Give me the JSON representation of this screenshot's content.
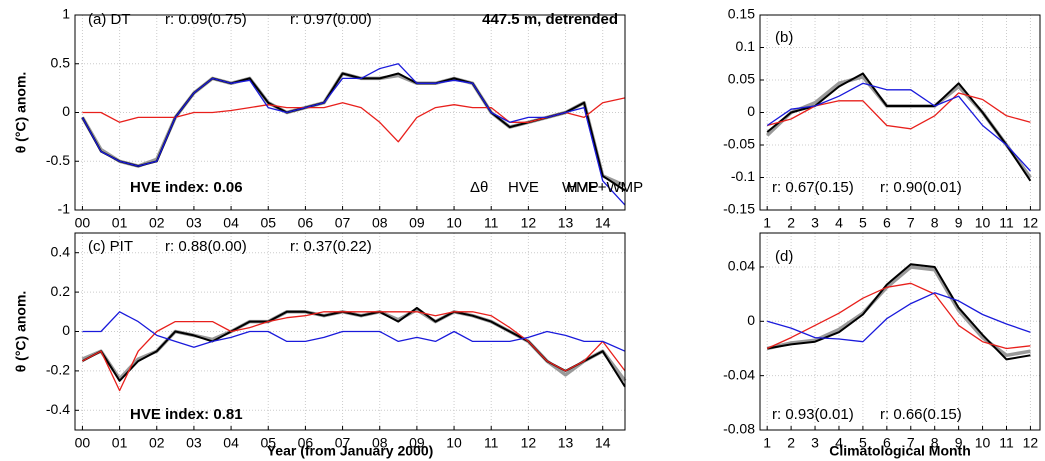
{
  "chart_data": [
    {
      "type": "line",
      "legend": true,
      "grid": true,
      "y_label": "θ (°C) anom.",
      "annotations": [
        {
          "text": "(a) DT",
          "color": "#000000"
        },
        {
          "text": "r: 0.09(0.75)",
          "color": "#e8201c"
        },
        {
          "text": "r: 0.97(0.00)",
          "color": "#1a1adb"
        },
        {
          "text": "447.5 m, detrended",
          "color": "#000000"
        },
        {
          "text": "HVE index: 0.06",
          "color": "#000000"
        }
      ],
      "x": [
        0,
        0.5,
        1,
        1.5,
        2,
        2.5,
        3,
        3.5,
        4,
        4.5,
        5,
        5.5,
        6,
        6.5,
        7,
        7.5,
        8,
        8.5,
        9,
        9.5,
        10,
        10.5,
        11,
        11.5,
        12,
        12.5,
        13,
        13.5,
        14,
        14.6
      ],
      "xlim": [
        -0.2,
        14.6
      ],
      "xticks": [
        {
          "value": 0,
          "label": "00"
        },
        {
          "value": 1,
          "label": "01"
        },
        {
          "value": 2,
          "label": "02"
        },
        {
          "value": 3,
          "label": "03"
        },
        {
          "value": 4,
          "label": "04"
        },
        {
          "value": 5,
          "label": "05"
        },
        {
          "value": 6,
          "label": "06"
        },
        {
          "value": 7,
          "label": "07"
        },
        {
          "value": 8,
          "label": "08"
        },
        {
          "value": 9,
          "label": "09"
        },
        10,
        11,
        12,
        13,
        14
      ],
      "ylim": [
        -1,
        1
      ],
      "yticks": [
        -1,
        -0.5,
        0,
        0.5,
        1
      ],
      "series": [
        {
          "name": "Δθ",
          "color": "#000000",
          "values": [
            -0.05,
            -0.4,
            -0.5,
            -0.55,
            -0.5,
            -0.05,
            0.2,
            0.35,
            0.3,
            0.35,
            0.1,
            0.0,
            0.05,
            0.1,
            0.4,
            0.35,
            0.35,
            0.4,
            0.3,
            0.3,
            0.35,
            0.3,
            0.0,
            -0.15,
            -0.1,
            -0.05,
            0.0,
            0.1,
            -0.65,
            -0.8
          ]
        },
        {
          "name": "HVE",
          "color": "#e8201c",
          "values": [
            0,
            0,
            -0.1,
            -0.05,
            -0.05,
            -0.05,
            0,
            0,
            0.02,
            0.05,
            0.08,
            0.05,
            0.05,
            0.05,
            0.1,
            0.05,
            -0.1,
            -0.3,
            -0.05,
            0.05,
            0.08,
            0.05,
            0.05,
            -0.1,
            -0.1,
            -0.05,
            0,
            -0.05,
            0.1,
            0.15
          ]
        },
        {
          "name": "WMP",
          "color": "#1a1adb",
          "values": [
            -0.05,
            -0.4,
            -0.5,
            -0.55,
            -0.5,
            -0.05,
            0.2,
            0.35,
            0.3,
            0.33,
            0.05,
            0.0,
            0.05,
            0.1,
            0.35,
            0.35,
            0.45,
            0.5,
            0.3,
            0.3,
            0.33,
            0.3,
            0.0,
            -0.1,
            -0.05,
            -0.05,
            0.0,
            0.05,
            -0.7,
            -0.95
          ]
        },
        {
          "name": "HVE+WMP",
          "color": "#9a9a9a",
          "values": [
            -0.05,
            -0.38,
            -0.5,
            -0.55,
            -0.48,
            -0.05,
            0.2,
            0.35,
            0.3,
            0.35,
            0.1,
            0.0,
            0.05,
            0.1,
            0.4,
            0.35,
            0.35,
            0.38,
            0.3,
            0.3,
            0.35,
            0.3,
            0.0,
            -0.15,
            -0.1,
            -0.05,
            0.0,
            0.1,
            -0.65,
            -0.75
          ]
        }
      ]
    },
    {
      "type": "line",
      "legend": false,
      "grid": true,
      "annotations": [
        {
          "text": "(b)",
          "color": "#000000"
        },
        {
          "text": "r: 0.67(0.15)",
          "color": "#e8201c"
        },
        {
          "text": "r: 0.90(0.01)",
          "color": "#1a1adb"
        }
      ],
      "x": [
        1,
        2,
        3,
        4,
        5,
        6,
        7,
        8,
        9,
        10,
        11,
        12
      ],
      "xlim": [
        0.7,
        12.4
      ],
      "xticks": [
        1,
        2,
        3,
        4,
        5,
        6,
        7,
        8,
        9,
        10,
        11,
        12
      ],
      "ylim": [
        -0.15,
        0.15
      ],
      "yticks": [
        -0.15,
        -0.1,
        -0.05,
        0,
        0.05,
        0.1,
        0.15
      ],
      "series": [
        {
          "color": "#000000",
          "values": [
            -0.03,
            0.0,
            0.01,
            0.04,
            0.06,
            0.01,
            0.01,
            0.01,
            0.045,
            0.0,
            -0.05,
            -0.105
          ]
        },
        {
          "color": "#e8201c",
          "values": [
            -0.02,
            -0.01,
            0.01,
            0.018,
            0.018,
            -0.02,
            -0.025,
            -0.005,
            0.03,
            0.02,
            -0.005,
            -0.015
          ]
        },
        {
          "color": "#1a1adb",
          "values": [
            -0.02,
            0.005,
            0.01,
            0.025,
            0.045,
            0.035,
            0.035,
            0.01,
            0.025,
            -0.02,
            -0.05,
            -0.09
          ]
        },
        {
          "color": "#9a9a9a",
          "values": [
            -0.035,
            0.0,
            0.015,
            0.045,
            0.055,
            0.01,
            0.01,
            0.01,
            0.04,
            0.0,
            -0.05,
            -0.1
          ]
        }
      ]
    },
    {
      "type": "line",
      "legend": false,
      "grid": true,
      "y_label": "θ (°C) anom.",
      "x_label": "Year (from January 2000)",
      "annotations": [
        {
          "text": "(c) PIT",
          "color": "#000000"
        },
        {
          "text": "r: 0.88(0.00)",
          "color": "#e8201c"
        },
        {
          "text": "r: 0.37(0.22)",
          "color": "#1a1adb"
        },
        {
          "text": "HVE index: 0.81",
          "color": "#000000"
        }
      ],
      "x": [
        0,
        0.5,
        1,
        1.5,
        2,
        2.5,
        3,
        3.5,
        4,
        4.5,
        5,
        5.5,
        6,
        6.5,
        7,
        7.5,
        8,
        8.5,
        9,
        9.5,
        10,
        10.5,
        11,
        11.5,
        12,
        12.5,
        13,
        13.5,
        14,
        14.6
      ],
      "xlim": [
        -0.2,
        14.6
      ],
      "xticks": [
        {
          "value": 0,
          "label": "00"
        },
        {
          "value": 1,
          "label": "01"
        },
        {
          "value": 2,
          "label": "02"
        },
        {
          "value": 3,
          "label": "03"
        },
        {
          "value": 4,
          "label": "04"
        },
        {
          "value": 5,
          "label": "05"
        },
        {
          "value": 6,
          "label": "06"
        },
        {
          "value": 7,
          "label": "07"
        },
        {
          "value": 8,
          "label": "08"
        },
        {
          "value": 9,
          "label": "09"
        },
        10,
        11,
        12,
        13,
        14
      ],
      "ylim": [
        -0.5,
        0.5
      ],
      "yticks": [
        -0.4,
        -0.2,
        0,
        0.2,
        0.4
      ],
      "series": [
        {
          "color": "#000000",
          "values": [
            -0.15,
            -0.1,
            -0.25,
            -0.15,
            -0.1,
            0.0,
            -0.02,
            -0.05,
            0.0,
            0.05,
            0.05,
            0.1,
            0.1,
            0.08,
            0.1,
            0.08,
            0.1,
            0.05,
            0.12,
            0.05,
            0.1,
            0.08,
            0.05,
            0.0,
            -0.05,
            -0.15,
            -0.2,
            -0.15,
            -0.1,
            -0.28
          ]
        },
        {
          "color": "#e8201c",
          "values": [
            -0.15,
            -0.1,
            -0.3,
            -0.1,
            0.0,
            0.05,
            0.05,
            0.05,
            0.0,
            0.02,
            0.05,
            0.07,
            0.08,
            0.1,
            0.1,
            0.1,
            0.1,
            0.1,
            0.1,
            0.08,
            0.1,
            0.1,
            0.08,
            0.02,
            -0.05,
            -0.15,
            -0.2,
            -0.15,
            -0.05,
            -0.2
          ]
        },
        {
          "color": "#1a1adb",
          "values": [
            0.0,
            0.0,
            0.1,
            0.05,
            -0.02,
            -0.05,
            -0.08,
            -0.05,
            -0.03,
            0.0,
            0.0,
            -0.05,
            -0.05,
            -0.03,
            0.0,
            0.0,
            0.0,
            -0.05,
            -0.03,
            -0.05,
            0.0,
            -0.05,
            -0.05,
            -0.05,
            -0.03,
            0.0,
            -0.02,
            -0.05,
            -0.05,
            -0.1
          ]
        },
        {
          "color": "#9a9a9a",
          "values": [
            -0.14,
            -0.1,
            -0.24,
            -0.14,
            -0.1,
            0.0,
            -0.02,
            -0.04,
            0.0,
            0.05,
            0.05,
            0.1,
            0.1,
            0.08,
            0.1,
            0.08,
            0.1,
            0.06,
            0.11,
            0.05,
            0.1,
            0.08,
            0.05,
            0.0,
            -0.05,
            -0.15,
            -0.22,
            -0.15,
            -0.1,
            -0.25
          ]
        }
      ]
    },
    {
      "type": "line",
      "legend": false,
      "grid": true,
      "x_label": "Climatological Month",
      "annotations": [
        {
          "text": "(d)",
          "color": "#000000"
        },
        {
          "text": "r: 0.93(0.01)",
          "color": "#e8201c"
        },
        {
          "text": "r: 0.66(0.15)",
          "color": "#1a1adb"
        }
      ],
      "x": [
        1,
        2,
        3,
        4,
        5,
        6,
        7,
        8,
        9,
        10,
        11,
        12
      ],
      "xlim": [
        0.7,
        12.4
      ],
      "xticks": [
        1,
        2,
        3,
        4,
        5,
        6,
        7,
        8,
        9,
        10,
        11,
        12
      ],
      "ylim": [
        -0.08,
        0.065
      ],
      "yticks": [
        -0.08,
        -0.04,
        0,
        0.04
      ],
      "series": [
        {
          "color": "#000000",
          "values": [
            -0.02,
            -0.017,
            -0.015,
            -0.008,
            0.005,
            0.027,
            0.042,
            0.04,
            0.01,
            -0.01,
            -0.028,
            -0.025
          ]
        },
        {
          "color": "#e8201c",
          "values": [
            -0.02,
            -0.012,
            -0.003,
            0.006,
            0.017,
            0.025,
            0.028,
            0.02,
            -0.003,
            -0.015,
            -0.02,
            -0.018
          ]
        },
        {
          "color": "#1a1adb",
          "values": [
            0.0,
            -0.005,
            -0.012,
            -0.013,
            -0.015,
            0.002,
            0.013,
            0.021,
            0.015,
            0.005,
            -0.002,
            -0.008
          ]
        },
        {
          "color": "#9a9a9a",
          "values": [
            -0.02,
            -0.016,
            -0.014,
            -0.006,
            0.006,
            0.025,
            0.04,
            0.038,
            0.008,
            -0.012,
            -0.025,
            -0.022
          ]
        }
      ]
    }
  ]
}
